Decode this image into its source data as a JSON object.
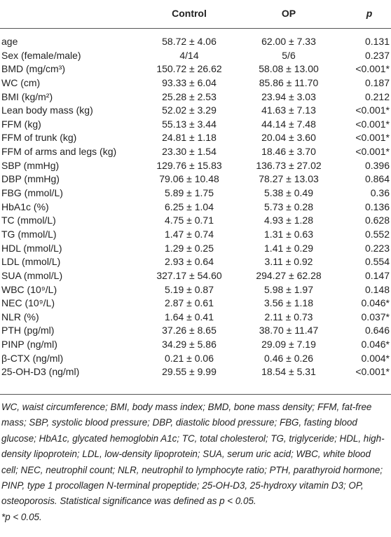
{
  "table": {
    "header": [
      "Control",
      "OP",
      "p"
    ],
    "rows": [
      [
        "age",
        "58.72 ± 4.06",
        "62.00 ± 7.33",
        "0.131"
      ],
      [
        "Sex (female/male)",
        "4/14",
        "5/6",
        "0.237"
      ],
      [
        "BMD (mg/cm³)",
        "150.72 ± 26.62",
        "58.08 ± 13.00",
        "<0.001*"
      ],
      [
        "WC (cm)",
        "93.33 ± 6.04",
        "85.86 ± 11.70",
        "0.187"
      ],
      [
        "BMI (kg/m²)",
        "25.28 ± 2.53",
        "23.94 ± 3.03",
        "0.212"
      ],
      [
        "Lean body mass (kg)",
        "52.02 ± 3.29",
        "41.63 ± 7.13",
        "<0.001*"
      ],
      [
        "FFM (kg)",
        "55.13 ± 3.44",
        "44.14 ± 7.48",
        "<0.001*"
      ],
      [
        "FFM of trunk (kg)",
        "24.81 ± 1.18",
        "20.04 ± 3.60",
        "<0.001*"
      ],
      [
        "FFM of arms and legs (kg)",
        "23.30 ± 1.54",
        "18.46 ± 3.70",
        "<0.001*"
      ],
      [
        "SBP (mmHg)",
        "129.76 ± 15.83",
        "136.73 ± 27.02",
        "0.396"
      ],
      [
        "DBP (mmHg)",
        "79.06 ± 10.48",
        "78.27 ± 13.03",
        "0.864"
      ],
      [
        "FBG (mmol/L)",
        "5.89 ± 1.75",
        "5.38 ± 0.49",
        "0.36"
      ],
      [
        "HbA1c (%)",
        "6.25 ± 1.04",
        "5.73 ± 0.28",
        "0.136"
      ],
      [
        "TC (mmol/L)",
        "4.75 ± 0.71",
        "4.93 ± 1.28",
        "0.628"
      ],
      [
        "TG (mmol/L)",
        "1.47 ± 0.74",
        "1.31 ± 0.63",
        "0.552"
      ],
      [
        "HDL (mmol/L)",
        "1.29 ± 0.25",
        "1.41 ± 0.29",
        "0.223"
      ],
      [
        "LDL (mmol/L)",
        "2.93 ± 0.64",
        "3.11 ± 0.92",
        "0.554"
      ],
      [
        "SUA (mmol/L)",
        "327.17 ± 54.60",
        "294.27 ± 62.28",
        "0.147"
      ],
      [
        "WBC (10⁹/L)",
        "5.19 ± 0.87",
        "5.98 ± 1.97",
        "0.148"
      ],
      [
        "NEC (10⁹/L)",
        "2.87 ± 0.61",
        "3.56 ± 1.18",
        "0.046*"
      ],
      [
        "NLR (%)",
        "1.64 ± 0.41",
        "2.11 ± 0.73",
        "0.037*"
      ],
      [
        "PTH (pg/ml)",
        "37.26 ± 8.65",
        "38.70 ± 11.47",
        "0.646"
      ],
      [
        "PINP (ng/ml)",
        "34.29 ± 5.86",
        "29.09 ± 7.19",
        "0.046*"
      ],
      [
        "β-CTX (ng/ml)",
        "0.21 ± 0.06",
        "0.46 ± 0.26",
        "0.004*"
      ],
      [
        "25-OH-D3 (ng/ml)",
        "29.55 ± 9.99",
        "18.54 ± 5.31",
        "<0.001*"
      ]
    ]
  },
  "footnote": [
    "WC, waist circumference; BMI, body mass index; BMD, bone mass density; FFM, fat-free mass; SBP, systolic blood pressure; DBP, diastolic blood pressure; FBG, fasting blood glucose; HbA1c, glycated hemoglobin A1c; TC, total cholesterol; TG, triglyceride; HDL, high-density lipoprotein; LDL, low-density lipoprotein; SUA, serum uric acid; WBC, white blood cell; NEC, neutrophil count; NLR, neutrophil to lymphocyte ratio; PTH, parathyroid hormone; PINP, type 1 procollagen N-terminal propeptide; 25-OH-D3, 25-hydroxy vitamin D3; OP, osteoporosis. Statistical significance was defined as p < 0.05.",
    "*p < 0.05."
  ]
}
